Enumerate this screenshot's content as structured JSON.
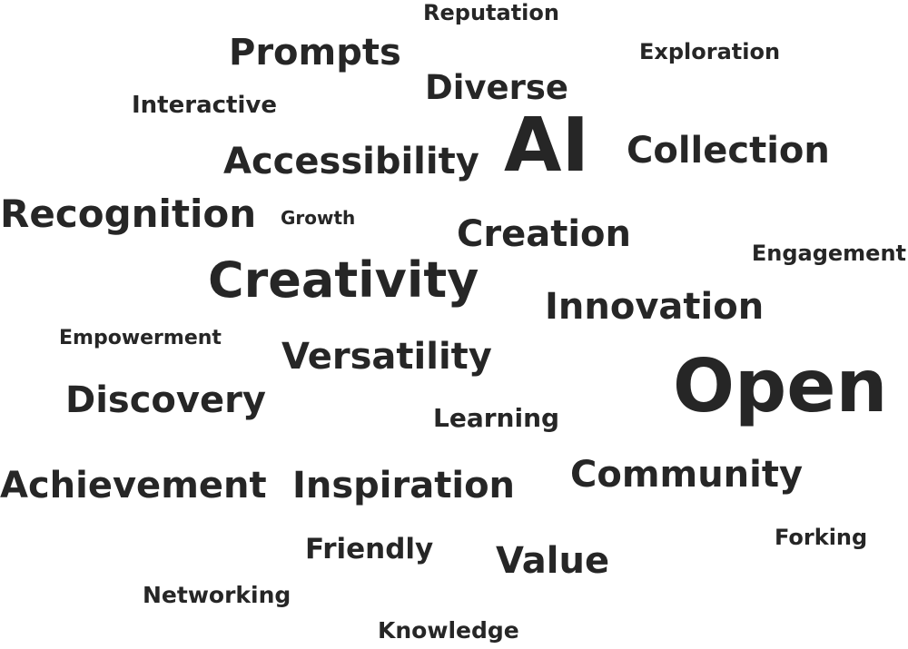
{
  "word_cloud": {
    "text_color": "#262626",
    "background": "#ffffff",
    "words": [
      {
        "text": "Reputation"
      },
      {
        "text": "Prompts"
      },
      {
        "text": "Exploration"
      },
      {
        "text": "Diverse"
      },
      {
        "text": "Interactive"
      },
      {
        "text": "AI"
      },
      {
        "text": "Collection"
      },
      {
        "text": "Accessibility"
      },
      {
        "text": "Recognition"
      },
      {
        "text": "Growth"
      },
      {
        "text": "Creation"
      },
      {
        "text": "Engagement"
      },
      {
        "text": "Creativity"
      },
      {
        "text": "Innovation"
      },
      {
        "text": "Empowerment"
      },
      {
        "text": "Versatility"
      },
      {
        "text": "Open"
      },
      {
        "text": "Discovery"
      },
      {
        "text": "Learning"
      },
      {
        "text": "Community"
      },
      {
        "text": "Achievement"
      },
      {
        "text": "Inspiration"
      },
      {
        "text": "Forking"
      },
      {
        "text": "Friendly"
      },
      {
        "text": "Value"
      },
      {
        "text": "Networking"
      },
      {
        "text": "Knowledge"
      }
    ]
  }
}
